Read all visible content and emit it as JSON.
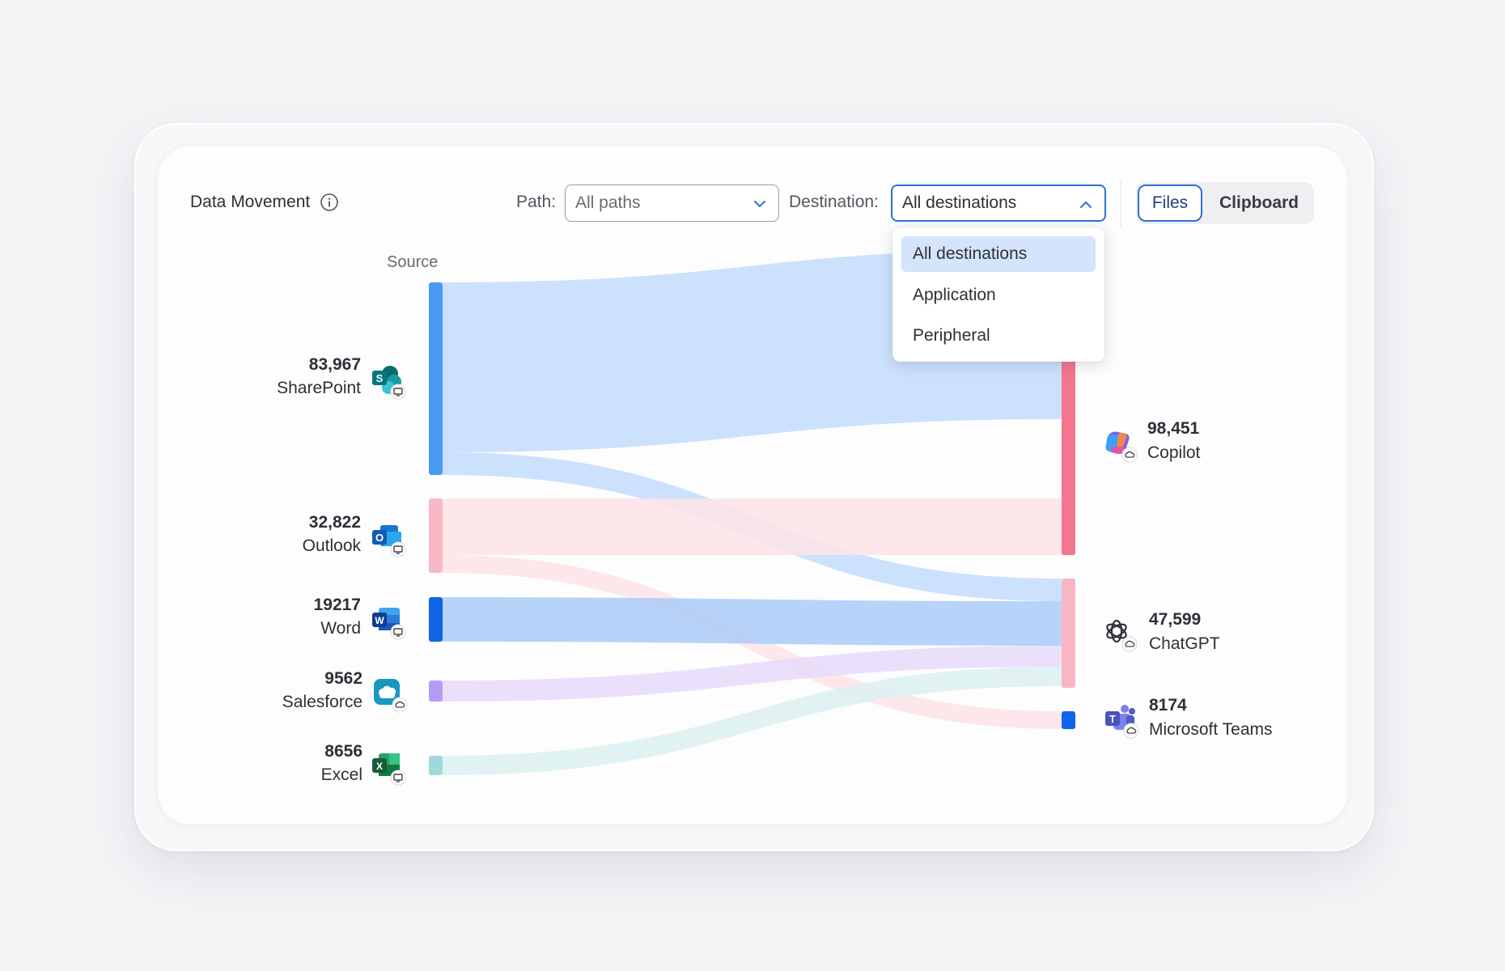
{
  "header": {
    "title": "Data Movement",
    "path_label": "Path:",
    "path_value": "All paths",
    "destination_label": "Destination:",
    "destination_value": "All destinations",
    "toggle": {
      "files": "Files",
      "clipboard": "Clipboard",
      "active": "Files"
    }
  },
  "dropdown": {
    "open": true,
    "options": [
      "All destinations",
      "Application",
      "Peripheral"
    ],
    "selected": "All destinations"
  },
  "chart_data": {
    "type": "sankey",
    "title": "",
    "source_heading": "Source",
    "sources": [
      {
        "name": "SharePoint",
        "value_label": "83,967",
        "value": 83967,
        "color": "#4a9af5",
        "icon": "sharepoint-icon",
        "badge": "desktop"
      },
      {
        "name": "Outlook",
        "value_label": "32,822",
        "value": 32822,
        "color": "#f8b9c4",
        "icon": "outlook-icon",
        "badge": "desktop"
      },
      {
        "name": "Word",
        "value_label": "19217",
        "value": 19217,
        "color": "#1064e8",
        "icon": "word-icon",
        "badge": "desktop"
      },
      {
        "name": "Salesforce",
        "value_label": "9562",
        "value": 9562,
        "color": "#b79cf6",
        "icon": "salesforce-icon",
        "badge": "cloud"
      },
      {
        "name": "Excel",
        "value_label": "8656",
        "value": 8656,
        "color": "#9fd9dc",
        "icon": "excel-icon",
        "badge": "desktop"
      }
    ],
    "destinations": [
      {
        "name": "Copilot",
        "value_label": "98,451",
        "value": 98451,
        "color": "#f47590",
        "icon": "copilot-icon",
        "badge": "cloud"
      },
      {
        "name": "ChatGPT",
        "value_label": "47,599",
        "value": 47599,
        "color": "#f8b6c3",
        "icon": "chatgpt-icon",
        "badge": "cloud"
      },
      {
        "name": "Microsoft Teams",
        "value_label": "8174",
        "value": 8174,
        "color": "#1064e8",
        "icon": "teams-icon",
        "badge": "cloud"
      }
    ],
    "links": [
      {
        "source": "SharePoint",
        "target": "Copilot",
        "color": "#c3dcfb"
      },
      {
        "source": "SharePoint",
        "target": "ChatGPT",
        "color": "#c3dcfb"
      },
      {
        "source": "Outlook",
        "target": "Copilot",
        "color": "#fde3e8"
      },
      {
        "source": "Outlook",
        "target": "Microsoft Teams",
        "color": "#fde3e8"
      },
      {
        "source": "Word",
        "target": "ChatGPT",
        "color": "#abcbf8"
      },
      {
        "source": "Salesforce",
        "target": "ChatGPT",
        "color": "#e7dbfb"
      },
      {
        "source": "Excel",
        "target": "ChatGPT",
        "color": "#dcf0f1"
      }
    ]
  }
}
